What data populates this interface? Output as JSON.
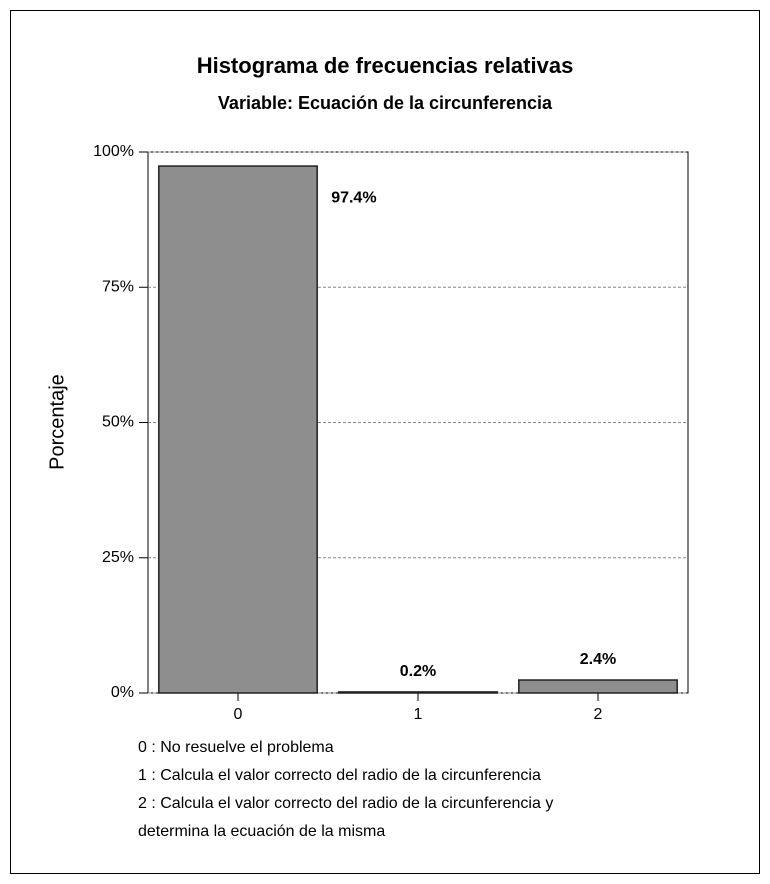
{
  "chart_data": {
    "type": "bar",
    "title": "Histograma de frecuencias relativas",
    "subtitle": "Variable: Ecuación de la circunferencia",
    "y_label": "Porcentaje",
    "categories": [
      "0",
      "1",
      "2"
    ],
    "values": [
      97.4,
      0.2,
      2.4
    ],
    "value_labels": [
      "97.4%",
      "0.2%",
      "2.4%"
    ],
    "color": "#8e8e8e",
    "ylim": [
      0,
      100
    ],
    "yticks": [
      {
        "value": 0,
        "label": "0%"
      },
      {
        "value": 25,
        "label": "25%"
      },
      {
        "value": 50,
        "label": "50%"
      },
      {
        "value": 75,
        "label": "75%"
      },
      {
        "value": 100,
        "label": "100%"
      }
    ],
    "grid": true,
    "notes": [
      "0 : No resuelve el problema",
      "1 : Calcula el valor correcto del radio de la circunferencia",
      "2 : Calcula el valor correcto del radio de la circunferencia y",
      "determina la ecuación de la misma"
    ]
  }
}
